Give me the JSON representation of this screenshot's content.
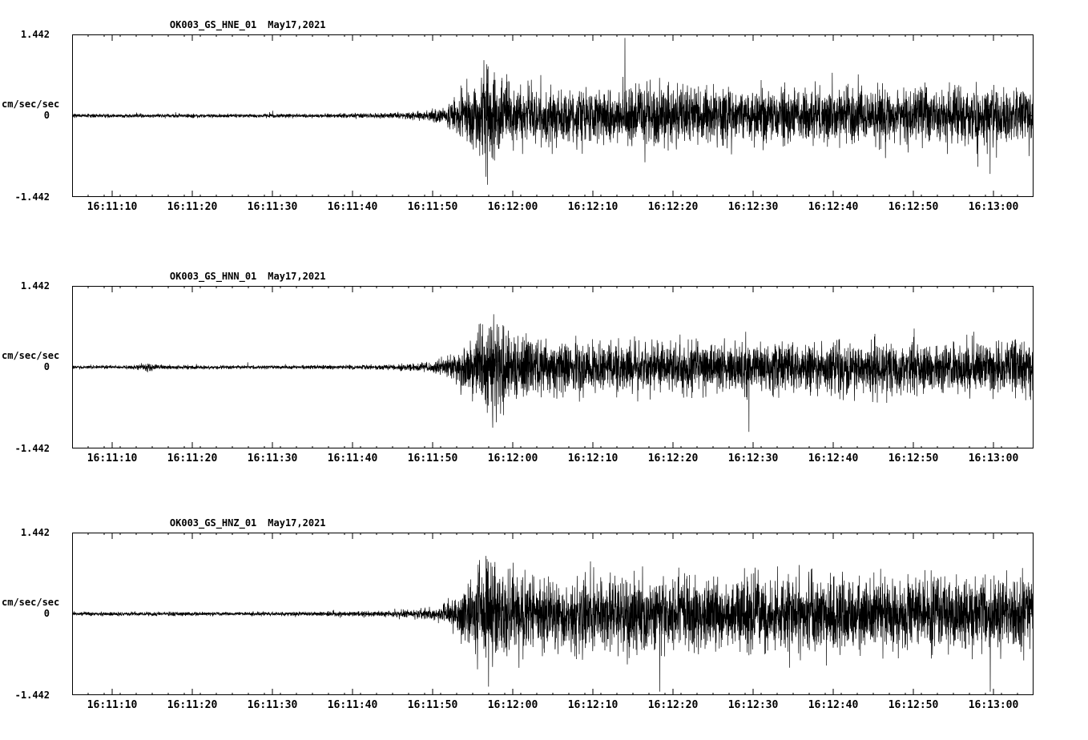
{
  "page": {
    "background": "#ffffff",
    "trace_color": "#000000",
    "axis_color": "#000000"
  },
  "chart_data": [
    {
      "type": "line",
      "title": "OK003_GS_HNE_01",
      "date": "May17,2021",
      "ylabel": "cm/sec/sec",
      "ylim": [
        -1.442,
        1.442
      ],
      "ytick_labels": [
        "1.442",
        "0",
        "-1.442"
      ],
      "x_start": "16:11:05",
      "x_end": "16:13:05",
      "duration_s": 120,
      "x_tick_labels": [
        "16:11:10",
        "16:11:20",
        "16:11:30",
        "16:11:40",
        "16:11:50",
        "16:12:00",
        "16:12:10",
        "16:12:20",
        "16:12:30",
        "16:12:40",
        "16:12:50",
        "16:13:00"
      ],
      "x_tick_seconds": [
        5,
        15,
        25,
        35,
        45,
        55,
        65,
        75,
        85,
        95,
        105,
        115
      ],
      "minor_tick_interval_s": 2,
      "grid": false,
      "legend": false,
      "seed": 7,
      "envelope": [
        [
          0,
          0.03
        ],
        [
          30,
          0.032
        ],
        [
          40,
          0.045
        ],
        [
          44,
          0.08
        ],
        [
          46,
          0.13
        ],
        [
          48,
          0.28
        ],
        [
          50,
          0.55
        ],
        [
          51.5,
          0.8
        ],
        [
          53,
          0.62
        ],
        [
          55,
          0.5
        ],
        [
          58,
          0.46
        ],
        [
          65,
          0.44
        ],
        [
          75,
          0.46
        ],
        [
          85,
          0.44
        ],
        [
          95,
          0.46
        ],
        [
          105,
          0.44
        ],
        [
          115,
          0.46
        ],
        [
          120,
          0.45
        ]
      ],
      "spike_prob": 0.006,
      "spike_gain": 1.9
    },
    {
      "type": "line",
      "title": "OK003_GS_HNN_01",
      "date": "May17,2021",
      "ylabel": "cm/sec/sec",
      "ylim": [
        -1.442,
        1.442
      ],
      "ytick_labels": [
        "1.442",
        "0",
        "-1.442"
      ],
      "x_start": "16:11:05",
      "x_end": "16:13:05",
      "duration_s": 120,
      "x_tick_labels": [
        "16:11:10",
        "16:11:20",
        "16:11:30",
        "16:11:40",
        "16:11:50",
        "16:12:00",
        "16:12:10",
        "16:12:20",
        "16:12:30",
        "16:12:40",
        "16:12:50",
        "16:13:00"
      ],
      "x_tick_seconds": [
        5,
        15,
        25,
        35,
        45,
        55,
        65,
        75,
        85,
        95,
        105,
        115
      ],
      "minor_tick_interval_s": 2,
      "grid": false,
      "legend": false,
      "seed": 21,
      "envelope": [
        [
          0,
          0.028
        ],
        [
          8,
          0.03
        ],
        [
          9.5,
          0.09
        ],
        [
          11,
          0.03
        ],
        [
          30,
          0.03
        ],
        [
          40,
          0.04
        ],
        [
          44,
          0.07
        ],
        [
          46,
          0.12
        ],
        [
          48,
          0.25
        ],
        [
          50,
          0.5
        ],
        [
          51.5,
          0.82
        ],
        [
          53,
          0.7
        ],
        [
          54.5,
          0.55
        ],
        [
          57,
          0.45
        ],
        [
          62,
          0.42
        ],
        [
          70,
          0.4
        ],
        [
          80,
          0.42
        ],
        [
          90,
          0.4
        ],
        [
          100,
          0.42
        ],
        [
          110,
          0.4
        ],
        [
          120,
          0.42
        ]
      ],
      "spike_prob": 0.005,
      "spike_gain": 1.8
    },
    {
      "type": "line",
      "title": "OK003_GS_HNZ_01",
      "date": "May17,2021",
      "ylabel": "cm/sec/sec",
      "ylim": [
        -1.442,
        1.442
      ],
      "ytick_labels": [
        "1.442",
        "0",
        "-1.442"
      ],
      "x_start": "16:11:05",
      "x_end": "16:13:05",
      "duration_s": 120,
      "x_tick_labels": [
        "16:11:10",
        "16:11:20",
        "16:11:30",
        "16:11:40",
        "16:11:50",
        "16:12:00",
        "16:12:10",
        "16:12:20",
        "16:12:30",
        "16:12:40",
        "16:12:50",
        "16:13:00"
      ],
      "x_tick_seconds": [
        5,
        15,
        25,
        35,
        45,
        55,
        65,
        75,
        85,
        95,
        105,
        115
      ],
      "minor_tick_interval_s": 2,
      "grid": false,
      "legend": false,
      "seed": 33,
      "envelope": [
        [
          0,
          0.03
        ],
        [
          30,
          0.032
        ],
        [
          40,
          0.05
        ],
        [
          44,
          0.09
        ],
        [
          46,
          0.15
        ],
        [
          48,
          0.3
        ],
        [
          50,
          0.6
        ],
        [
          51.5,
          0.85
        ],
        [
          53,
          0.75
        ],
        [
          55,
          0.65
        ],
        [
          60,
          0.6
        ],
        [
          70,
          0.58
        ],
        [
          80,
          0.6
        ],
        [
          90,
          0.58
        ],
        [
          100,
          0.6
        ],
        [
          110,
          0.58
        ],
        [
          118,
          0.62
        ],
        [
          120,
          0.7
        ]
      ],
      "spike_prob": 0.01,
      "spike_gain": 1.9
    }
  ]
}
